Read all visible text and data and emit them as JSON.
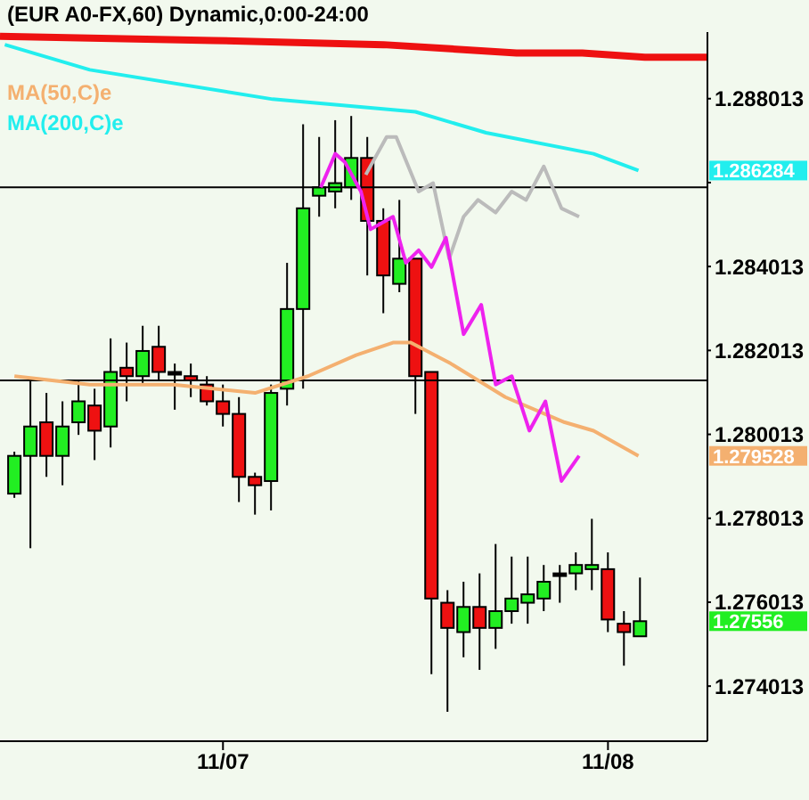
{
  "chart_data": {
    "type": "candlestick",
    "title": "(EUR A0-FX,60) Dynamic,0:00-24:00",
    "legend": "top left",
    "x": [
      "--11-06T11:00",
      "--11-06T12:00",
      "--11-06T13:00",
      "--11-06T14:00",
      "--11-06T15:00",
      "--11-06T16:00",
      "--11-06T17:00",
      "--11-06T18:00",
      "--11-06T19:00",
      "--11-06T20:00",
      "--11-06T21:00",
      "--11-06T22:00",
      "--11-06T23:00",
      "--11-07T00:00",
      "--11-07T01:00",
      "--11-07T02:00",
      "--11-07T03:00",
      "--11-07T04:00",
      "--11-07T05:00",
      "--11-07T06:00",
      "--11-07T07:00",
      "--11-07T08:00",
      "--11-07T09:00",
      "--11-07T10:00",
      "--11-07T11:00",
      "--11-07T12:00",
      "--11-07T13:00",
      "--11-07T14:00",
      "--11-07T15:00",
      "--11-07T16:00",
      "--11-07T17:00",
      "--11-07T18:00",
      "--11-07T19:00",
      "--11-07T20:00",
      "--11-07T21:00",
      "--11-07T22:00",
      "--11-07T23:00",
      "--11-08T00:00",
      "--11-08T01:00",
      "--11-08T02:00"
    ],
    "ohlc": [
      [
        1.2786,
        1.2796,
        1.2785,
        1.2795
      ],
      [
        1.2795,
        1.2813,
        1.2773,
        1.2802
      ],
      [
        1.2803,
        1.281,
        1.279,
        1.2795
      ],
      [
        1.2795,
        1.2808,
        1.2788,
        1.2802
      ],
      [
        1.2803,
        1.2813,
        1.28,
        1.2808
      ],
      [
        1.2807,
        1.2811,
        1.2794,
        1.2801
      ],
      [
        1.2802,
        1.2823,
        1.2797,
        1.2815
      ],
      [
        1.2816,
        1.2822,
        1.2808,
        1.2814
      ],
      [
        1.2814,
        1.2826,
        1.2812,
        1.282
      ],
      [
        1.2821,
        1.2826,
        1.2813,
        1.2815
      ],
      [
        1.2815,
        1.2817,
        1.2806,
        1.2815
      ],
      [
        1.2814,
        1.2817,
        1.2809,
        1.2813
      ],
      [
        1.2812,
        1.2814,
        1.2807,
        1.2808
      ],
      [
        1.2808,
        1.2812,
        1.2802,
        1.2805
      ],
      [
        1.2805,
        1.2809,
        1.2784,
        1.279
      ],
      [
        1.279,
        1.2791,
        1.2781,
        1.2788
      ],
      [
        1.2789,
        1.2812,
        1.2782,
        1.281
      ],
      [
        1.2811,
        1.2841,
        1.2807,
        1.283
      ],
      [
        1.283,
        1.2874,
        1.2811,
        1.2854
      ],
      [
        1.2857,
        1.2871,
        1.2852,
        1.2859
      ],
      [
        1.2858,
        1.2875,
        1.2854,
        1.286
      ],
      [
        1.2859,
        1.2876,
        1.2856,
        1.2866
      ],
      [
        1.2866,
        1.2871,
        1.2838,
        1.2851
      ],
      [
        1.2851,
        1.2854,
        1.2829,
        1.2838
      ],
      [
        1.2836,
        1.2856,
        1.2834,
        1.2842
      ],
      [
        1.2842,
        1.2842,
        1.2805,
        1.2814
      ],
      [
        1.2815,
        1.2815,
        1.2743,
        1.2761
      ],
      [
        1.276,
        1.2763,
        1.2734,
        1.2754
      ],
      [
        1.2753,
        1.2765,
        1.2747,
        1.2759
      ],
      [
        1.2759,
        1.2767,
        1.2744,
        1.2754
      ],
      [
        1.2754,
        1.2774,
        1.2749,
        1.2758
      ],
      [
        1.2758,
        1.2771,
        1.2755,
        1.2761
      ],
      [
        1.276,
        1.2771,
        1.2755,
        1.2762
      ],
      [
        1.2761,
        1.2769,
        1.2758,
        1.2765
      ],
      [
        1.2767,
        1.2769,
        1.276,
        1.2767
      ],
      [
        1.2767,
        1.2772,
        1.2763,
        1.2769
      ],
      [
        1.2768,
        1.278,
        1.2763,
        1.2769
      ],
      [
        1.2768,
        1.2772,
        1.2753,
        1.2756
      ],
      [
        1.2755,
        1.2758,
        1.2745,
        1.2753
      ],
      [
        1.2752,
        1.2766,
        1.2752,
        1.27556
      ]
    ],
    "colors": [
      "#22ee22",
      "#22ee22",
      "#ee1111",
      "#22ee22",
      "#22ee22",
      "#ee1111",
      "#22ee22",
      "#ee1111",
      "#22ee22",
      "#ee1111",
      "#000000",
      "#ee1111",
      "#ee1111",
      "#ee1111",
      "#ee1111",
      "#ee1111",
      "#22ee22",
      "#22ee22",
      "#22ee22",
      "#22ee22",
      "#22ee22",
      "#22ee22",
      "#ee1111",
      "#ee1111",
      "#22ee22",
      "#ee1111",
      "#ee1111",
      "#ee1111",
      "#22ee22",
      "#ee1111",
      "#22ee22",
      "#22ee22",
      "#22ee22",
      "#22ee22",
      "#000000",
      "#22ee22",
      "#22ee22",
      "#ee1111",
      "#ee1111",
      "#22ee22"
    ],
    "series": [
      {
        "type": "line",
        "color": "#ee1111",
        "x": [
          "--11-06T10:06",
          "--11-06T23:24",
          "--11-07T10:00",
          "--11-07T14:12",
          "--11-07T18:18",
          "--11-07T22:24",
          "--11-08T02:18",
          "--11-08T06:12"
        ],
        "values": [
          1.2895,
          1.2894,
          1.2893,
          1.2892,
          1.2891,
          1.2891,
          1.289,
          1.289
        ]
      },
      {
        "type": "line",
        "name": "MA(50,C)e",
        "color": "#f4b070",
        "x": [
          "--11-06T11:00",
          "--11-06T15:42",
          "--11-06T20:54",
          "--11-07T02:00",
          "--11-07T05:18",
          "--11-07T08:18",
          "--11-07T10:36",
          "--11-07T11:42",
          "--11-07T14:12",
          "--11-07T17:36",
          "--11-07T21:18",
          "--11-07T23:06",
          "--11-08T01:54"
        ],
        "values": [
          1.2814,
          1.2812,
          1.2812,
          1.281,
          1.2814,
          1.2819,
          1.2822,
          1.2822,
          1.2817,
          1.2809,
          1.2803,
          1.2801,
          1.2795
        ]
      },
      {
        "type": "line",
        "name": "MA(200,C)e",
        "color": "#22eeee",
        "x": [
          "--11-06T10:24",
          "--11-06T15:42",
          "--11-07T03:06",
          "--11-07T12:00",
          "--11-07T16:24",
          "--11-07T23:06",
          "--11-08T01:54"
        ],
        "values": [
          1.2893,
          1.2887,
          1.288,
          1.2877,
          1.2872,
          1.2867,
          1.2863
        ]
      },
      {
        "type": "line",
        "color": "#bbbbbb",
        "x": [
          "--11-07T08:54",
          "--11-07T10:12",
          "--11-07T10:48",
          "--11-07T12:12",
          "--11-07T13:06",
          "--11-07T14:06",
          "--11-07T15:00",
          "--11-07T15:54",
          "--11-07T17:00",
          "--11-07T18:00",
          "--11-07T18:54",
          "--11-07T20:00",
          "--11-07T21:06",
          "--11-07T22:12"
        ],
        "values": [
          1.2862,
          1.2871,
          1.2871,
          1.2858,
          1.286,
          1.2842,
          1.2852,
          1.2856,
          1.2853,
          1.2858,
          1.2856,
          1.2864,
          1.2854,
          1.2852
        ]
      },
      {
        "type": "line",
        "color": "#ee22ee",
        "x": [
          "--11-07T06:06",
          "--11-07T07:00",
          "--11-07T07:36",
          "--11-07T08:36",
          "--11-07T09:12",
          "--11-07T10:36",
          "--11-07T11:24",
          "--11-07T12:12",
          "--11-07T13:00",
          "--11-07T13:54",
          "--11-07T15:00",
          "--11-07T16:06",
          "--11-07T17:00",
          "--11-07T18:00",
          "--11-07T19:06",
          "--11-07T20:06",
          "--11-07T21:06",
          "--11-07T22:12"
        ],
        "values": [
          1.2859,
          1.2867,
          1.2865,
          1.2858,
          1.2849,
          1.2852,
          1.2841,
          1.2844,
          1.284,
          1.2847,
          1.2824,
          1.2831,
          1.2812,
          1.2814,
          1.2801,
          1.2808,
          1.2789,
          1.2795
        ]
      }
    ],
    "ref_lines": [
      {
        "axis": "y",
        "value": 1.2859,
        "color": "#000000"
      },
      {
        "axis": "y",
        "value": 1.2813,
        "color": "#000000"
      }
    ],
    "annotations": [
      "1.279528",
      "1.286284",
      "1.27556"
    ],
    "xlim": [
      "--11-06T10:06",
      "--11-08T06:12"
    ],
    "xticks": [
      {
        "value": "--11-07",
        "label": "11/07"
      },
      {
        "value": "--11-08",
        "label": "11/08"
      }
    ],
    "ylim": [
      1.2727,
      1.2896
    ],
    "yticks": [
      1.274013,
      1.276013,
      1.278013,
      1.280013,
      1.282013,
      1.284013,
      {
        "value": 1.286013,
        "label": null
      },
      1.288013
    ]
  }
}
